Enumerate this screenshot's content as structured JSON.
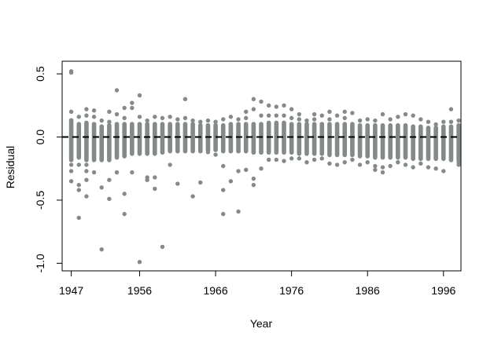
{
  "chart_data": {
    "type": "scatter",
    "title": "",
    "xlabel": "Year",
    "ylabel": "Residual",
    "xlim": [
      1945.8,
      1998.3
    ],
    "ylim": [
      -1.06,
      0.6
    ],
    "x_ticks": [
      1947,
      1956,
      1966,
      1976,
      1986,
      1996
    ],
    "x_tick_labels": [
      "1947",
      "1956",
      "1966",
      "1976",
      "1986",
      "1996"
    ],
    "y_ticks": [
      0.5,
      0.0,
      -0.5,
      -1.0
    ],
    "y_tick_labels": [
      "0.5",
      "0.0",
      "-0.5",
      "-1.0"
    ],
    "reference_line": {
      "y": 0,
      "style": "dashed",
      "color": "#000000"
    },
    "point_color": "#848a88",
    "grid": false,
    "series": [
      {
        "points": [
          [
            1947,
            0.52
          ],
          [
            1947,
            0.51
          ],
          [
            1947,
            0.2
          ],
          [
            1947,
            -0.22
          ],
          [
            1947,
            -0.27
          ],
          [
            1947,
            -0.35
          ],
          [
            1948,
            0.16
          ],
          [
            1948,
            -0.22
          ],
          [
            1948,
            -0.38
          ],
          [
            1948,
            -0.42
          ],
          [
            1948,
            -0.64
          ],
          [
            1949,
            0.22
          ],
          [
            1949,
            0.17
          ],
          [
            1949,
            -0.22
          ],
          [
            1949,
            -0.27
          ],
          [
            1949,
            -0.34
          ],
          [
            1949,
            -0.47
          ],
          [
            1950,
            0.21
          ],
          [
            1950,
            0.16
          ],
          [
            1950,
            -0.28
          ],
          [
            1951,
            0.13
          ],
          [
            1951,
            -0.4
          ],
          [
            1951,
            -0.89
          ],
          [
            1952,
            0.2
          ],
          [
            1952,
            0.12
          ],
          [
            1952,
            -0.34
          ],
          [
            1952,
            -0.49
          ],
          [
            1953,
            0.37
          ],
          [
            1953,
            0.18
          ],
          [
            1953,
            -0.28
          ],
          [
            1954,
            0.23
          ],
          [
            1954,
            0.15
          ],
          [
            1954,
            -0.45
          ],
          [
            1954,
            -0.61
          ],
          [
            1955,
            0.27
          ],
          [
            1955,
            0.23
          ],
          [
            1955,
            -0.28
          ],
          [
            1956,
            0.33
          ],
          [
            1956,
            0.16
          ],
          [
            1956,
            -0.99
          ],
          [
            1957,
            0.13
          ],
          [
            1957,
            -0.32
          ],
          [
            1957,
            -0.34
          ],
          [
            1958,
            0.16
          ],
          [
            1958,
            -0.32
          ],
          [
            1958,
            -0.41
          ],
          [
            1959,
            0.15
          ],
          [
            1959,
            -0.87
          ],
          [
            1960,
            0.16
          ],
          [
            1960,
            -0.22
          ],
          [
            1961,
            0.14
          ],
          [
            1961,
            -0.37
          ],
          [
            1962,
            0.3
          ],
          [
            1962,
            0.15
          ],
          [
            1963,
            0.13
          ],
          [
            1963,
            -0.47
          ],
          [
            1964,
            0.12
          ],
          [
            1964,
            -0.36
          ],
          [
            1965,
            0.13
          ],
          [
            1965,
            -0.12
          ],
          [
            1966,
            0.12
          ],
          [
            1966,
            -0.14
          ],
          [
            1967,
            0.14
          ],
          [
            1967,
            -0.23
          ],
          [
            1967,
            -0.42
          ],
          [
            1967,
            -0.61
          ],
          [
            1968,
            0.16
          ],
          [
            1968,
            -0.35
          ],
          [
            1969,
            0.14
          ],
          [
            1969,
            -0.27
          ],
          [
            1969,
            -0.59
          ],
          [
            1970,
            0.2
          ],
          [
            1970,
            0.15
          ],
          [
            1970,
            -0.26
          ],
          [
            1971,
            0.3
          ],
          [
            1971,
            0.22
          ],
          [
            1971,
            -0.33
          ],
          [
            1971,
            -0.38
          ],
          [
            1972,
            0.28
          ],
          [
            1972,
            0.17
          ],
          [
            1972,
            -0.25
          ],
          [
            1973,
            0.25
          ],
          [
            1973,
            0.17
          ],
          [
            1973,
            -0.18
          ],
          [
            1974,
            0.24
          ],
          [
            1974,
            0.17
          ],
          [
            1974,
            -0.18
          ],
          [
            1975,
            0.25
          ],
          [
            1975,
            0.17
          ],
          [
            1975,
            -0.19
          ],
          [
            1976,
            0.22
          ],
          [
            1976,
            0.15
          ],
          [
            1976,
            -0.17
          ],
          [
            1977,
            0.18
          ],
          [
            1977,
            0.14
          ],
          [
            1977,
            -0.17
          ],
          [
            1978,
            0.13
          ],
          [
            1978,
            -0.2
          ],
          [
            1979,
            0.18
          ],
          [
            1979,
            0.14
          ],
          [
            1979,
            -0.18
          ],
          [
            1980,
            0.17
          ],
          [
            1980,
            -0.17
          ],
          [
            1981,
            0.2
          ],
          [
            1981,
            0.14
          ],
          [
            1981,
            -0.21
          ],
          [
            1982,
            0.17
          ],
          [
            1982,
            -0.22
          ],
          [
            1983,
            0.2
          ],
          [
            1983,
            0.15
          ],
          [
            1983,
            -0.2
          ],
          [
            1984,
            0.19
          ],
          [
            1984,
            -0.18
          ],
          [
            1985,
            0.13
          ],
          [
            1985,
            -0.22
          ],
          [
            1986,
            0.14
          ],
          [
            1986,
            -0.2
          ],
          [
            1987,
            0.13
          ],
          [
            1987,
            -0.23
          ],
          [
            1987,
            -0.26
          ],
          [
            1988,
            0.18
          ],
          [
            1988,
            -0.24
          ],
          [
            1988,
            -0.28
          ],
          [
            1989,
            0.14
          ],
          [
            1989,
            -0.23
          ],
          [
            1990,
            0.16
          ],
          [
            1990,
            -0.2
          ],
          [
            1991,
            0.18
          ],
          [
            1991,
            -0.22
          ],
          [
            1992,
            0.17
          ],
          [
            1992,
            -0.24
          ],
          [
            1993,
            0.14
          ],
          [
            1993,
            -0.21
          ],
          [
            1994,
            0.12
          ],
          [
            1994,
            -0.24
          ],
          [
            1995,
            0.1
          ],
          [
            1995,
            -0.25
          ],
          [
            1996,
            0.12
          ],
          [
            1996,
            -0.27
          ],
          [
            1997,
            0.22
          ],
          [
            1997,
            0.12
          ],
          [
            1997,
            -0.16
          ],
          [
            1998,
            0.13
          ],
          [
            1998,
            -0.2
          ],
          [
            1998,
            -0.22
          ]
        ],
        "columns": [
          {
            "x": 1947,
            "low": -0.2,
            "high": 0.15
          },
          {
            "x": 1948,
            "low": -0.18,
            "high": 0.12
          },
          {
            "x": 1949,
            "low": -0.2,
            "high": 0.13
          },
          {
            "x": 1950,
            "low": -0.2,
            "high": 0.12
          },
          {
            "x": 1951,
            "low": -0.2,
            "high": 0.1
          },
          {
            "x": 1952,
            "low": -0.2,
            "high": 0.11
          },
          {
            "x": 1953,
            "low": -0.18,
            "high": 0.12
          },
          {
            "x": 1954,
            "low": -0.17,
            "high": 0.12
          },
          {
            "x": 1955,
            "low": -0.15,
            "high": 0.12
          },
          {
            "x": 1956,
            "low": -0.15,
            "high": 0.12
          },
          {
            "x": 1957,
            "low": -0.15,
            "high": 0.12
          },
          {
            "x": 1958,
            "low": -0.15,
            "high": 0.12
          },
          {
            "x": 1959,
            "low": -0.14,
            "high": 0.12
          },
          {
            "x": 1960,
            "low": -0.13,
            "high": 0.12
          },
          {
            "x": 1961,
            "low": -0.13,
            "high": 0.12
          },
          {
            "x": 1962,
            "low": -0.13,
            "high": 0.12
          },
          {
            "x": 1963,
            "low": -0.13,
            "high": 0.12
          },
          {
            "x": 1964,
            "low": -0.13,
            "high": 0.11
          },
          {
            "x": 1965,
            "low": -0.12,
            "high": 0.11
          },
          {
            "x": 1966,
            "low": -0.12,
            "high": 0.11
          },
          {
            "x": 1967,
            "low": -0.13,
            "high": 0.11
          },
          {
            "x": 1968,
            "low": -0.13,
            "high": 0.12
          },
          {
            "x": 1969,
            "low": -0.13,
            "high": 0.12
          },
          {
            "x": 1970,
            "low": -0.13,
            "high": 0.12
          },
          {
            "x": 1971,
            "low": -0.14,
            "high": 0.12
          },
          {
            "x": 1972,
            "low": -0.14,
            "high": 0.12
          },
          {
            "x": 1973,
            "low": -0.14,
            "high": 0.13
          },
          {
            "x": 1974,
            "low": -0.14,
            "high": 0.13
          },
          {
            "x": 1975,
            "low": -0.14,
            "high": 0.13
          },
          {
            "x": 1976,
            "low": -0.14,
            "high": 0.12
          },
          {
            "x": 1977,
            "low": -0.15,
            "high": 0.12
          },
          {
            "x": 1978,
            "low": -0.15,
            "high": 0.12
          },
          {
            "x": 1979,
            "low": -0.15,
            "high": 0.12
          },
          {
            "x": 1980,
            "low": -0.15,
            "high": 0.12
          },
          {
            "x": 1981,
            "low": -0.16,
            "high": 0.12
          },
          {
            "x": 1982,
            "low": -0.16,
            "high": 0.12
          },
          {
            "x": 1983,
            "low": -0.16,
            "high": 0.12
          },
          {
            "x": 1984,
            "low": -0.16,
            "high": 0.12
          },
          {
            "x": 1985,
            "low": -0.17,
            "high": 0.11
          },
          {
            "x": 1986,
            "low": -0.17,
            "high": 0.11
          },
          {
            "x": 1987,
            "low": -0.18,
            "high": 0.11
          },
          {
            "x": 1988,
            "low": -0.18,
            "high": 0.11
          },
          {
            "x": 1989,
            "low": -0.18,
            "high": 0.11
          },
          {
            "x": 1990,
            "low": -0.18,
            "high": 0.11
          },
          {
            "x": 1991,
            "low": -0.18,
            "high": 0.11
          },
          {
            "x": 1992,
            "low": -0.19,
            "high": 0.1
          },
          {
            "x": 1993,
            "low": -0.19,
            "high": 0.1
          },
          {
            "x": 1994,
            "low": -0.19,
            "high": 0.09
          },
          {
            "x": 1995,
            "low": -0.19,
            "high": 0.09
          },
          {
            "x": 1996,
            "low": -0.19,
            "high": 0.1
          },
          {
            "x": 1997,
            "low": -0.2,
            "high": 0.1
          },
          {
            "x": 1998,
            "low": -0.2,
            "high": 0.11
          }
        ]
      }
    ]
  }
}
